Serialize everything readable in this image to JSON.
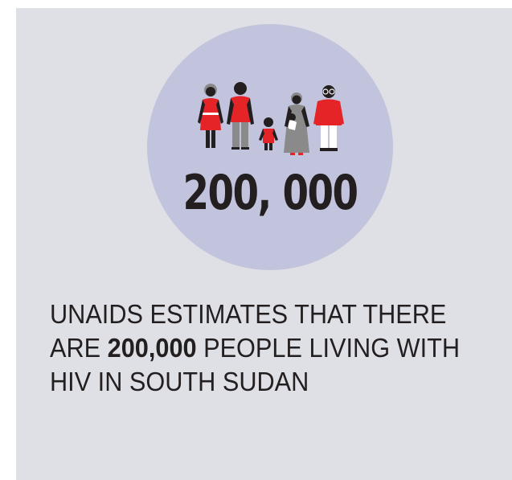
{
  "headline_number": "200, 000",
  "statement": {
    "before": "UNAIDS ESTIMATES THAT THERE ARE ",
    "highlight": "200,000",
    "after": " PEOPLE LIVING WITH HIV IN SOUTH SUDAN"
  },
  "colors": {
    "background": "#dfe0e5",
    "circle": "#c2c4dd",
    "accent_red": "#e42427",
    "figure_dark": "#231f20",
    "figure_grey": "#8a8a8a"
  },
  "icons": [
    "family-icon"
  ]
}
